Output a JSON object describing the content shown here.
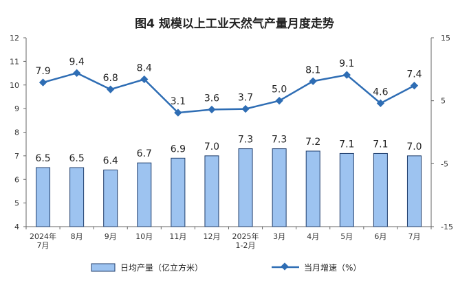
{
  "chart_data": {
    "type": "bar+line",
    "title": "图4 规模以上工业天然气产量月度走势",
    "categories": [
      [
        "2024年",
        "7月"
      ],
      [
        "8月"
      ],
      [
        "9月"
      ],
      [
        "10月"
      ],
      [
        "11月"
      ],
      [
        "12月"
      ],
      [
        "2025年",
        "1-2月"
      ],
      [
        "3月"
      ],
      [
        "4月"
      ],
      [
        "5月"
      ],
      [
        "6月"
      ],
      [
        "7月"
      ]
    ],
    "bar_series": {
      "name": "日均产量（亿立方米）",
      "values": [
        6.5,
        6.5,
        6.4,
        6.7,
        6.9,
        7.0,
        7.3,
        7.3,
        7.2,
        7.1,
        7.1,
        7.0
      ],
      "color": "#9dc3f0",
      "border": "#1f3d6b"
    },
    "line_series": {
      "name": "当月增速（%）",
      "values": [
        7.9,
        9.4,
        6.8,
        8.4,
        3.1,
        3.6,
        3.7,
        5.0,
        8.1,
        9.1,
        4.6,
        7.4
      ],
      "color": "#2e6db4"
    },
    "left_axis": {
      "ticks": [
        "12",
        "11",
        "10",
        "9",
        "8",
        "7",
        "6",
        "5",
        "4"
      ],
      "range": [
        4,
        12
      ]
    },
    "right_axis": {
      "ticks": [
        "15",
        "5",
        "-5",
        "-15"
      ],
      "range": [
        -15,
        15
      ]
    },
    "legend_position": "bottom",
    "grid": false
  }
}
